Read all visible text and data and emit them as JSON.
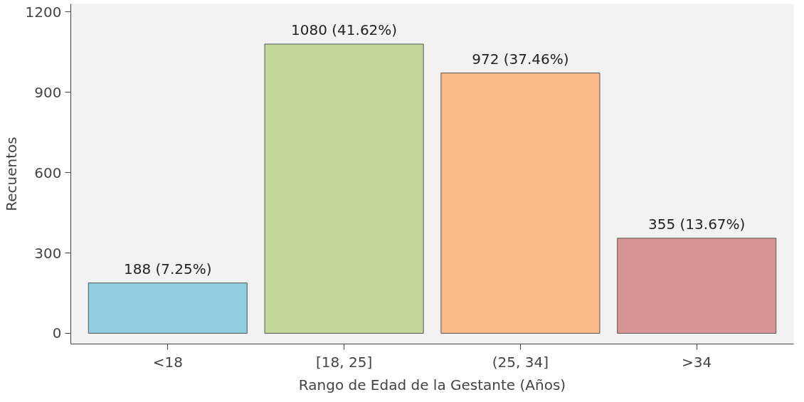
{
  "chart_data": {
    "type": "bar",
    "xlabel": "Rango de Edad de la Gestante (Años)",
    "ylabel": "Recuentos",
    "categories": [
      "<18",
      "[18, 25]",
      "(25, 34]",
      ">34"
    ],
    "values": [
      188,
      1080,
      972,
      355
    ],
    "colors": [
      "#8fcfdf",
      "#c5d89b",
      "#fcba8a",
      "#d99595"
    ],
    "value_labels": [
      "188 (7.25%)",
      "1080 (41.62%)",
      "972 (37.46%)",
      "355 (13.67%)"
    ],
    "ylim": [
      -40,
      1230
    ],
    "yticks": [
      0,
      300,
      600,
      900,
      1200
    ],
    "grid": false
  }
}
